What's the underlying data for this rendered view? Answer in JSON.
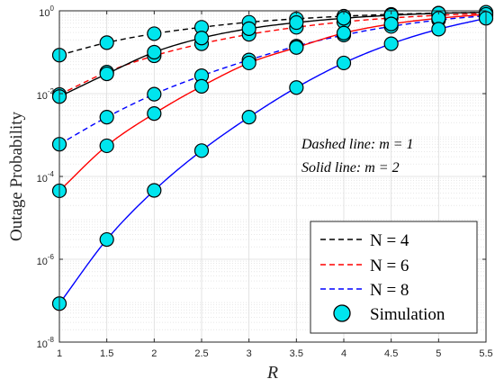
{
  "chart_data": {
    "type": "line",
    "title": "",
    "xlabel": "R",
    "ylabel": "Outage Probability",
    "x_scale": "linear",
    "y_scale": "log",
    "xlim": [
      1,
      5.5
    ],
    "ylim": [
      1e-08,
      1
    ],
    "grid": true,
    "legend_position": "bottom-right",
    "x_ticks": [
      "1",
      "1.5",
      "2",
      "2.5",
      "3",
      "3.5",
      "4",
      "4.5",
      "5",
      "5.5"
    ],
    "y_ticks": [
      {
        "base": "10",
        "exp": "0"
      },
      {
        "base": "10",
        "exp": "-2"
      },
      {
        "base": "10",
        "exp": "-4"
      },
      {
        "base": "10",
        "exp": "-6"
      },
      {
        "base": "10",
        "exp": "-8"
      }
    ],
    "x": [
      1,
      1.5,
      2,
      2.5,
      3,
      3.5,
      4,
      4.5,
      5,
      5.5
    ],
    "series": [
      {
        "name": "N = 4",
        "line": "dashed",
        "color": "#000000",
        "values": [
          0.085,
          0.17,
          0.28,
          0.4,
          0.53,
          0.64,
          0.74,
          0.82,
          0.88,
          0.92
        ]
      },
      {
        "name": "N = 6",
        "line": "dashed",
        "color": "#ff0000",
        "values": [
          0.0095,
          0.033,
          0.082,
          0.16,
          0.27,
          0.4,
          0.54,
          0.67,
          0.78,
          0.86
        ]
      },
      {
        "name": "N = 8",
        "line": "dashed",
        "color": "#0000ff",
        "values": [
          0.0006,
          0.0027,
          0.0097,
          0.027,
          0.065,
          0.14,
          0.26,
          0.42,
          0.6,
          0.76
        ]
      },
      {
        "line": "solid",
        "color": "#000000",
        "values": [
          0.0085,
          0.03,
          0.1,
          0.22,
          0.37,
          0.52,
          0.66,
          0.78,
          0.87,
          0.92
        ]
      },
      {
        "line": "solid",
        "color": "#ff0000",
        "values": [
          4.5e-05,
          0.00055,
          0.0033,
          0.015,
          0.055,
          0.13,
          0.29,
          0.48,
          0.66,
          0.82
        ]
      },
      {
        "line": "solid",
        "color": "#0000ff",
        "values": [
          8.5e-08,
          3e-06,
          4.6e-05,
          0.00042,
          0.0027,
          0.014,
          0.055,
          0.16,
          0.36,
          0.66
        ]
      }
    ],
    "simulation": {
      "name": "Simulation",
      "marker_color": "#00e5ee",
      "marker_edge": "#000000"
    },
    "annotations": [
      "Dashed line: m = 1",
      "Solid line: m = 2"
    ]
  }
}
